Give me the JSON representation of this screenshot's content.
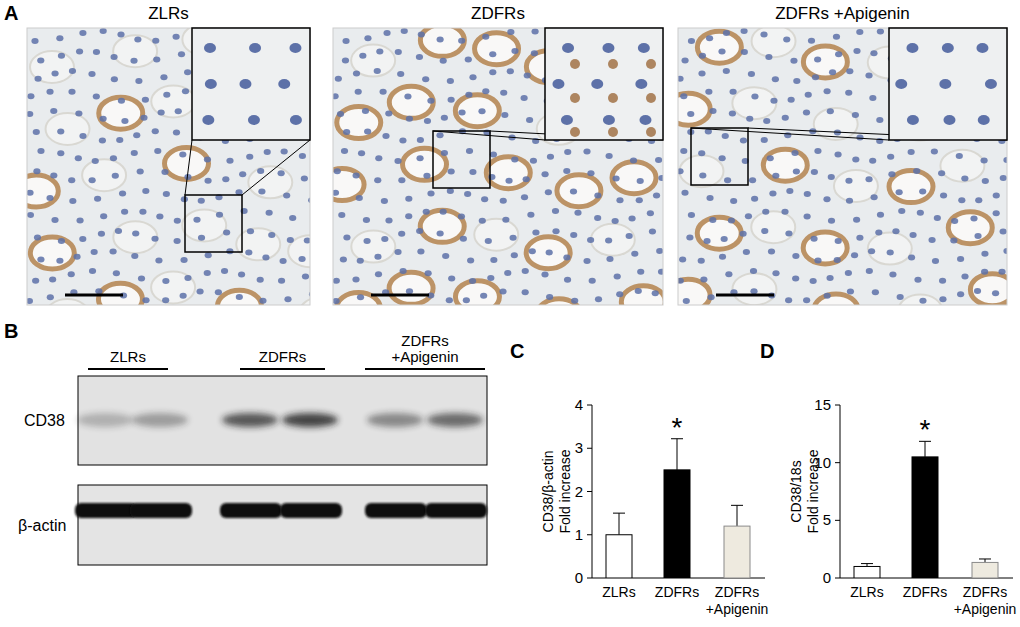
{
  "figure": {
    "panel_labels": [
      "A",
      "B",
      "C",
      "D"
    ],
    "histology_titles": [
      "ZLRs",
      "ZDFRs",
      "ZDFRs +Apigenin"
    ],
    "blot_groups": [
      "ZLRs",
      "ZDFRs",
      "ZDFRs +Apigenin"
    ],
    "blot_rows": [
      "CD38",
      "β-actin"
    ]
  },
  "chart_data": [
    {
      "type": "bar",
      "y_label": "CD38/β-actin Fold increase",
      "categories": [
        "ZLRs",
        "ZDFRs",
        "ZDFRs +Apigenin"
      ],
      "values": [
        1.0,
        2.5,
        1.2
      ],
      "errors": [
        0.5,
        0.72,
        0.48
      ],
      "colors": [
        "#ffffff",
        "#000000",
        "#eeeadf"
      ],
      "ylim": [
        0,
        4
      ],
      "yticks": [
        0,
        1,
        2,
        3,
        4
      ],
      "annotations": [
        {
          "text": "*",
          "x": "ZDFRs"
        }
      ]
    },
    {
      "type": "bar",
      "y_label": "CD38/18s Fold increase",
      "categories": [
        "ZLRs",
        "ZDFRs",
        "ZDFRs +Apigenin"
      ],
      "values": [
        1.0,
        10.5,
        1.35
      ],
      "errors": [
        0.25,
        1.35,
        0.3
      ],
      "colors": [
        "#ffffff",
        "#000000",
        "#eeeadf"
      ],
      "ylim": [
        0,
        15
      ],
      "yticks": [
        0,
        5,
        10,
        15
      ],
      "annotations": [
        {
          "text": "*",
          "x": "ZDFRs"
        }
      ]
    }
  ]
}
